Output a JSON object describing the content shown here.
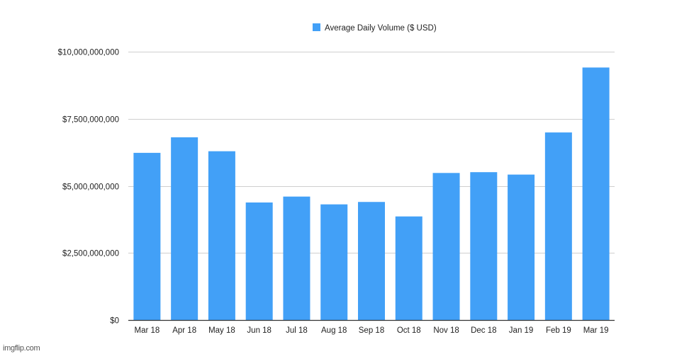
{
  "chart_data": {
    "type": "bar",
    "title": "",
    "xlabel": "",
    "ylabel": "",
    "categories": [
      "Mar 18",
      "Apr 18",
      "May 18",
      "Jun 18",
      "Jul 18",
      "Aug 18",
      "Sep 18",
      "Oct 18",
      "Nov 18",
      "Dec 18",
      "Jan 19",
      "Feb 19",
      "Mar 19"
    ],
    "series": [
      {
        "name": "Average Daily Volume ($ USD)",
        "color": "#42a0f7",
        "values": [
          6230000000,
          6810000000,
          6290000000,
          4380000000,
          4600000000,
          4310000000,
          4400000000,
          3860000000,
          5480000000,
          5510000000,
          5420000000,
          6990000000,
          9410000000
        ]
      }
    ],
    "ylim": [
      0,
      10000000000
    ],
    "yticks": [
      0,
      2500000000,
      5000000000,
      7500000000,
      10000000000
    ],
    "ytick_labels": [
      "$0",
      "$2,500,000,000",
      "$5,000,000,000",
      "$7,500,000,000",
      "$10,000,000,000"
    ],
    "grid": true,
    "legend_position": "top-center"
  },
  "watermark": "imgflip.com"
}
